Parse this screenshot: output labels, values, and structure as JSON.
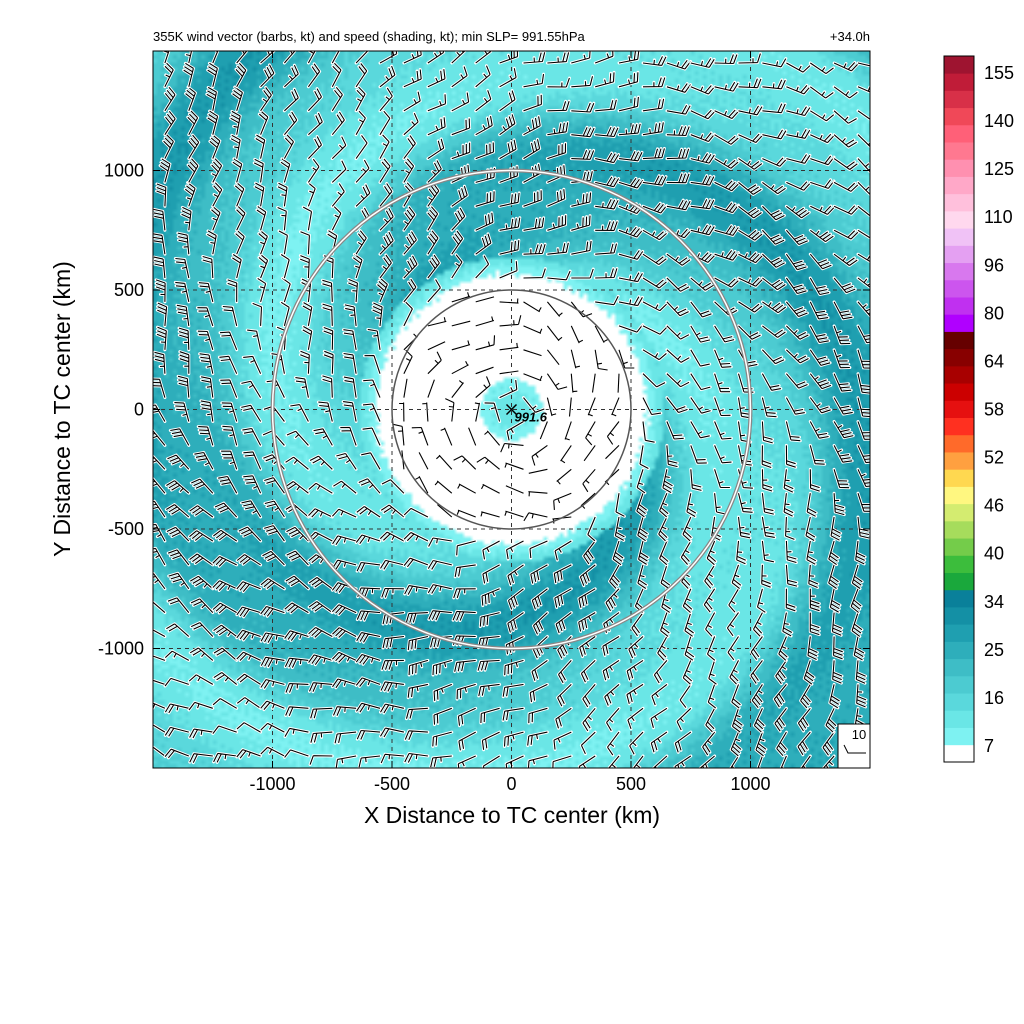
{
  "chart_data": {
    "type": "heatmap",
    "title": "355K wind vector (barbs, kt) and speed (shading, kt); min SLP= 991.55hPa",
    "forecast_hour": "+34.0h",
    "xlabel": "X Distance to TC center (km)",
    "ylabel": "Y Distance to TC center (km)",
    "xlim": [
      -1500,
      1500
    ],
    "ylim": [
      -1500,
      1500
    ],
    "xticks": [
      -1000,
      -500,
      0,
      500,
      1000
    ],
    "yticks": [
      -1000,
      -500,
      0,
      500,
      1000
    ],
    "xtick_labels": [
      "-1000",
      "-500",
      "0",
      "500",
      "1000"
    ],
    "ytick_labels": [
      "-1000",
      "-500",
      "0",
      "500",
      "1000"
    ],
    "grid": true,
    "center_marker": {
      "x": 0,
      "y": 0,
      "label": "991.6"
    },
    "range_rings_km": [
      500,
      1000
    ],
    "reference_vector_label": "10",
    "colorbar": {
      "tick_labels": [
        "155",
        "140",
        "125",
        "110",
        "96",
        "80",
        "64",
        "58",
        "52",
        "46",
        "40",
        "34",
        "25",
        "16",
        "7"
      ],
      "colors": [
        "#ffffff",
        "#7ef2f2",
        "#6ae6e6",
        "#5ad8dc",
        "#4ccbd1",
        "#3ebdc6",
        "#2eaebb",
        "#1f9fb0",
        "#1490a5",
        "#0a809a",
        "#1aa83c",
        "#3cbd3c",
        "#74cc4a",
        "#a6dc5c",
        "#d4ec70",
        "#fff780",
        "#ffd850",
        "#ffa040",
        "#ff6a2a",
        "#ff3020",
        "#e61010",
        "#cc0000",
        "#a80000",
        "#880000",
        "#660000",
        "#b000ff",
        "#c030f0",
        "#cc55ee",
        "#d878ee",
        "#e4a0f2",
        "#f0c2f6",
        "#ffd8ee",
        "#ffc0dc",
        "#ffa8c8",
        "#ff90b0",
        "#ff7890",
        "#ff6078",
        "#f04858",
        "#d83048",
        "#c01c38",
        "#9e1430"
      ]
    },
    "wind_speed_field": {
      "description_levels_kt": [
        7,
        16,
        25,
        34
      ],
      "structure": [
        {
          "radius_km": [
            0,
            150
          ],
          "speed_kt": 16
        },
        {
          "radius_km": [
            150,
            550
          ],
          "speed_kt": 5
        },
        {
          "radius_km": [
            550,
            650
          ],
          "speed_kt": 16
        },
        {
          "radius_km": [
            650,
            1500
          ],
          "speed_kt": 25,
          "spiral_bands_max_kt": 32
        }
      ]
    },
    "barb_spacing_km": 100
  }
}
